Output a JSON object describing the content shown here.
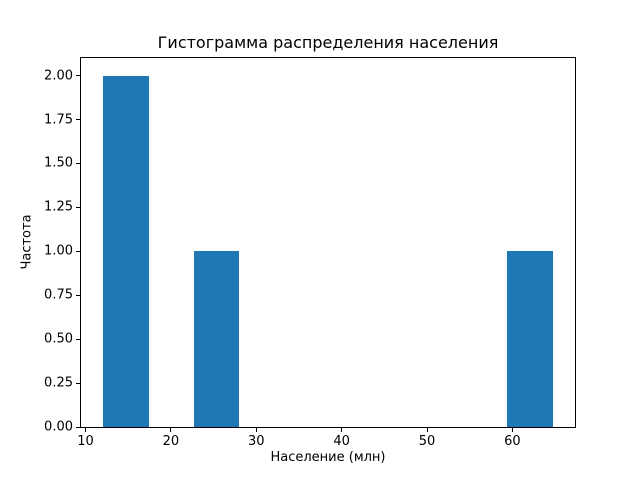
{
  "figure": {
    "background_color": "#ffffff",
    "spine_color": "#000000",
    "text_color": "#000000"
  },
  "chart_data": {
    "type": "bar",
    "subtype": "histogram",
    "title": "Гистограмма распределения населения",
    "xlabel": "Население (млн)",
    "ylabel": "Частота",
    "bar_color": "#1f77b4",
    "grid": false,
    "legend": false,
    "xlim": [
      9.47,
      67.33
    ],
    "ylim": [
      0,
      2.1
    ],
    "xticks": [
      {
        "value": 10,
        "label": "10"
      },
      {
        "value": 20,
        "label": "20"
      },
      {
        "value": 30,
        "label": "30"
      },
      {
        "value": 40,
        "label": "40"
      },
      {
        "value": 50,
        "label": "50"
      },
      {
        "value": 60,
        "label": "60"
      }
    ],
    "yticks": [
      {
        "value": 0.0,
        "label": "0.00"
      },
      {
        "value": 0.25,
        "label": "0.25"
      },
      {
        "value": 0.5,
        "label": "0.50"
      },
      {
        "value": 0.75,
        "label": "0.75"
      },
      {
        "value": 1.0,
        "label": "1.00"
      },
      {
        "value": 1.25,
        "label": "1.25"
      },
      {
        "value": 1.5,
        "label": "1.50"
      },
      {
        "value": 1.75,
        "label": "1.75"
      },
      {
        "value": 2.0,
        "label": "2.00"
      }
    ],
    "bars": [
      {
        "x0": 12.1,
        "x1": 17.4,
        "height": 2
      },
      {
        "x0": 22.7,
        "x1": 28.0,
        "height": 1
      },
      {
        "x0": 59.4,
        "x1": 64.7,
        "height": 1
      }
    ]
  }
}
